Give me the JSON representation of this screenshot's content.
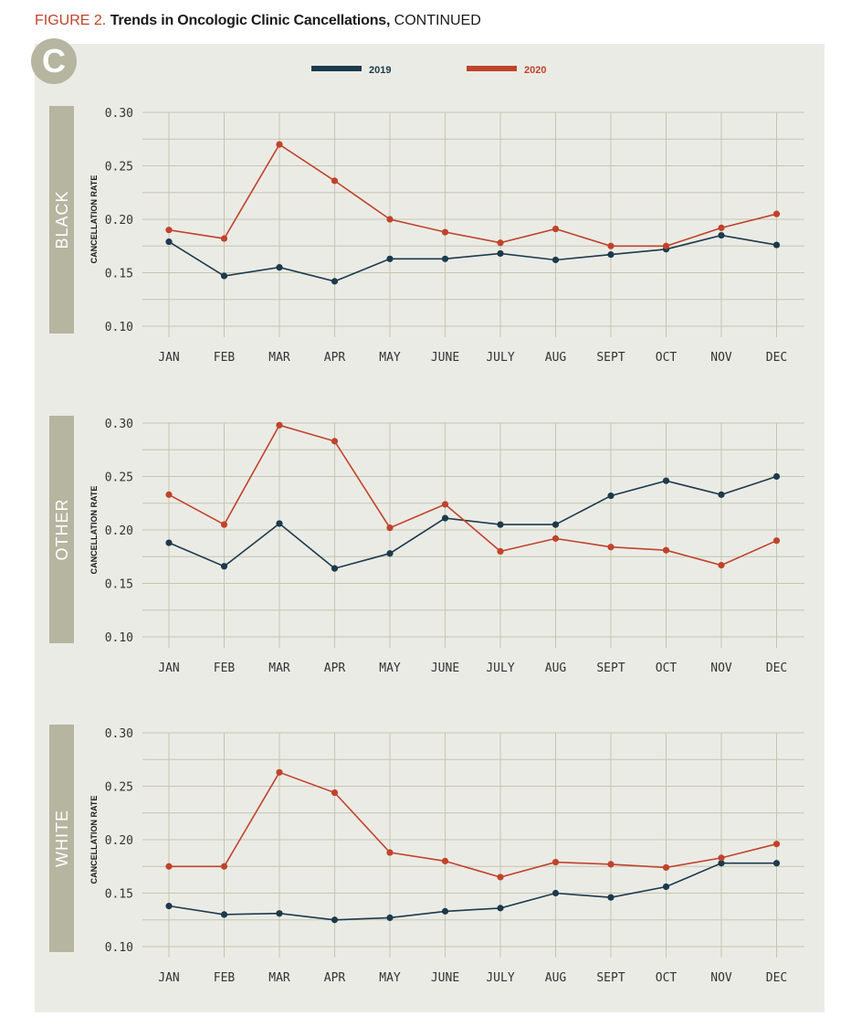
{
  "figure": {
    "label": "FIGURE 2.",
    "title": "Trends in Oncologic Clinic Cancellations,",
    "suffix": "CONTINUED",
    "panel": "C"
  },
  "colors": {
    "s2019": "#1c3a4b",
    "s2020": "#c0432b",
    "grid": "#c4c7ae",
    "label_box": "#b5b5a0"
  },
  "chart_data": [
    {
      "type": "line",
      "group": "BLACK",
      "ylabel": "CANCELLATION RATE",
      "categories": [
        "JAN",
        "FEB",
        "MAR",
        "APR",
        "MAY",
        "JUNE",
        "JULY",
        "AUG",
        "SEPT",
        "OCT",
        "NOV",
        "DEC"
      ],
      "ylim": [
        0.1,
        0.3
      ],
      "yticks": [
        "0.10",
        "0.15",
        "0.20",
        "0.25",
        "0.30"
      ],
      "series": [
        {
          "name": "2019",
          "values": [
            0.179,
            0.147,
            0.155,
            0.142,
            0.163,
            0.163,
            0.168,
            0.162,
            0.167,
            0.172,
            0.185,
            0.176
          ]
        },
        {
          "name": "2020",
          "values": [
            0.19,
            0.182,
            0.27,
            0.236,
            0.2,
            0.188,
            0.178,
            0.191,
            0.175,
            0.175,
            0.192,
            0.205
          ]
        }
      ]
    },
    {
      "type": "line",
      "group": "OTHER",
      "ylabel": "CANCELLATION RATE",
      "categories": [
        "JAN",
        "FEB",
        "MAR",
        "APR",
        "MAY",
        "JUNE",
        "JULY",
        "AUG",
        "SEPT",
        "OCT",
        "NOV",
        "DEC"
      ],
      "ylim": [
        0.1,
        0.3
      ],
      "yticks": [
        "0.10",
        "0.15",
        "0.20",
        "0.25",
        "0.30"
      ],
      "series": [
        {
          "name": "2019",
          "values": [
            0.188,
            0.166,
            0.206,
            0.164,
            0.178,
            0.211,
            0.205,
            0.205,
            0.232,
            0.246,
            0.233,
            0.25
          ]
        },
        {
          "name": "2020",
          "values": [
            0.233,
            0.205,
            0.298,
            0.283,
            0.202,
            0.224,
            0.18,
            0.192,
            0.184,
            0.181,
            0.167,
            0.19
          ]
        }
      ]
    },
    {
      "type": "line",
      "group": "WHITE",
      "ylabel": "CANCELLATION RATE",
      "categories": [
        "JAN",
        "FEB",
        "MAR",
        "APR",
        "MAY",
        "JUNE",
        "JULY",
        "AUG",
        "SEPT",
        "OCT",
        "NOV",
        "DEC"
      ],
      "ylim": [
        0.1,
        0.3
      ],
      "yticks": [
        "0.10",
        "0.15",
        "0.20",
        "0.25",
        "0.30"
      ],
      "series": [
        {
          "name": "2019",
          "values": [
            0.138,
            0.13,
            0.131,
            0.125,
            0.127,
            0.133,
            0.136,
            0.15,
            0.146,
            0.156,
            0.178,
            0.178
          ]
        },
        {
          "name": "2020",
          "values": [
            0.175,
            0.175,
            0.263,
            0.244,
            0.188,
            0.18,
            0.165,
            0.179,
            0.177,
            0.174,
            0.183,
            0.196
          ]
        }
      ]
    }
  ]
}
